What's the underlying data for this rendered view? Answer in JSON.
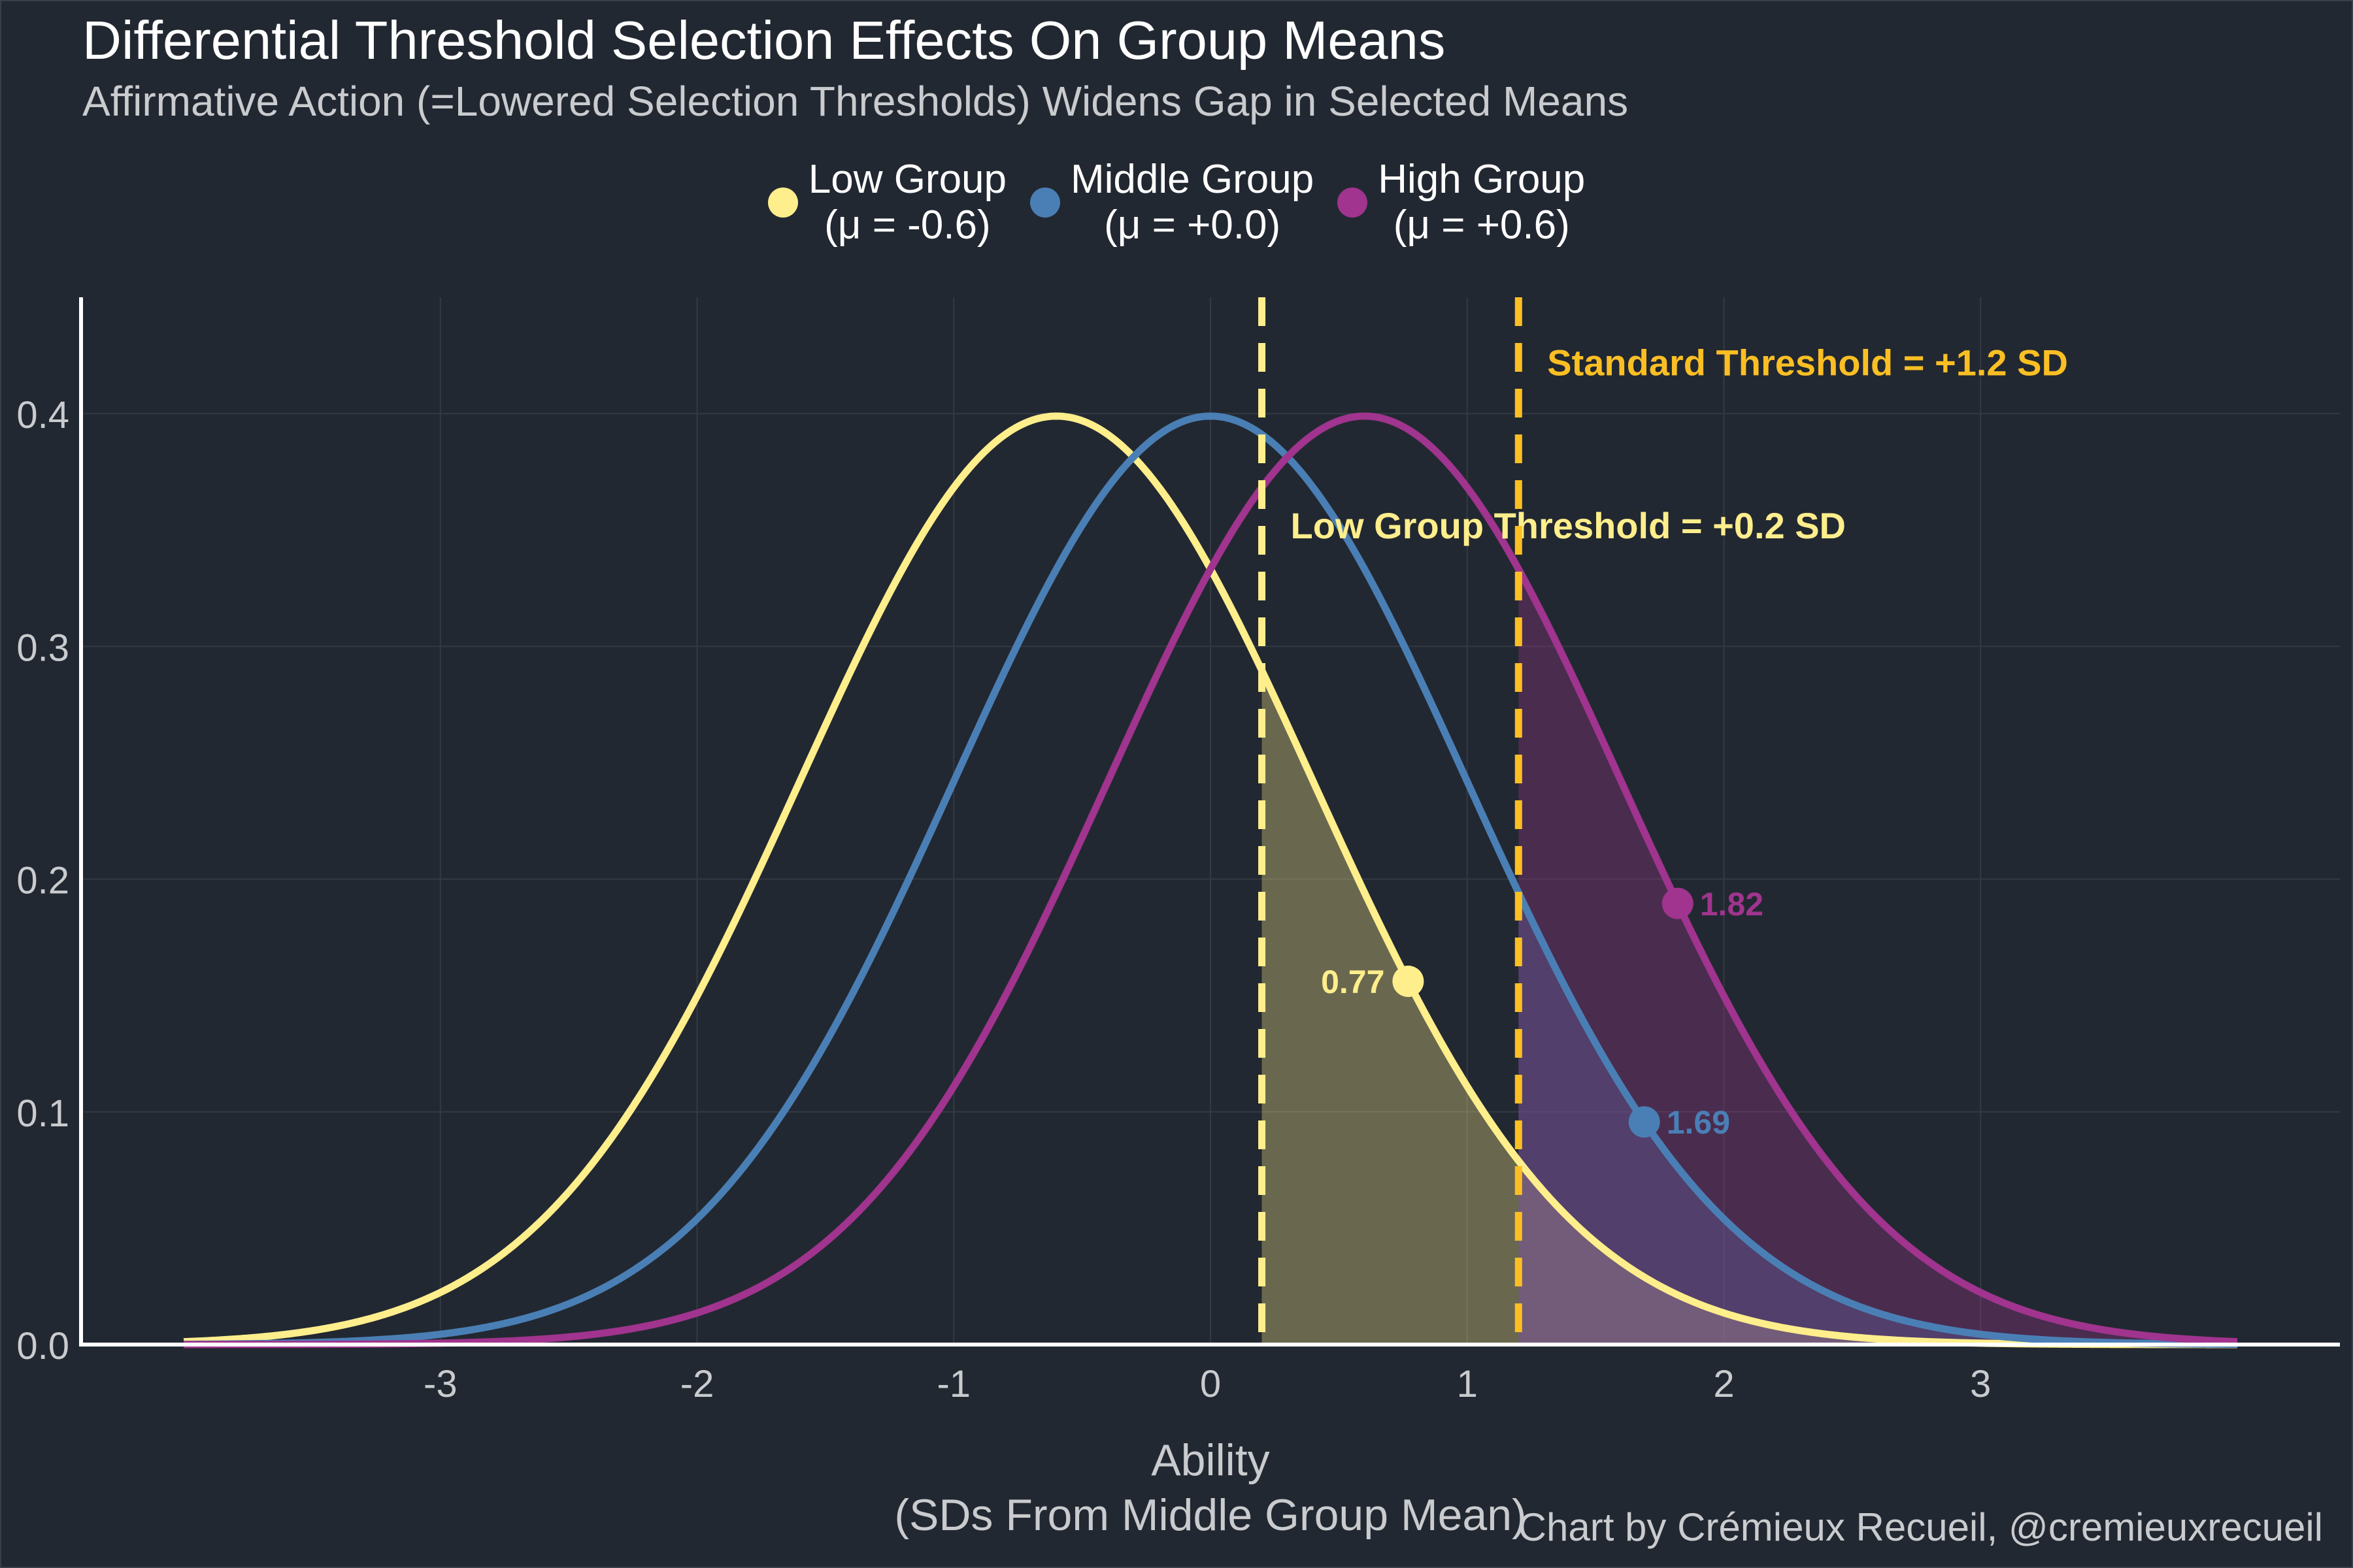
{
  "chart_data": {
    "type": "line",
    "title": "Differential Threshold Selection Effects On Group Means",
    "subtitle": "Affirmative Action (=Lowered Selection Thresholds) Widens Gap in Selected Means",
    "xlabel_line1": "Ability",
    "xlabel_line2": "(SDs From Middle Group Mean)",
    "ylabel": "",
    "xlim": [
      -4.4,
      4.4
    ],
    "ylim": [
      0,
      0.45
    ],
    "x_ticks": [
      -3,
      -2,
      -1,
      0,
      1,
      2,
      3
    ],
    "x_tick_labels": [
      "-3",
      "-2",
      "-1",
      "0",
      "1",
      "2",
      "3"
    ],
    "y_ticks": [
      0,
      0.1,
      0.2,
      0.3,
      0.4
    ],
    "y_tick_labels": [
      "0.0",
      "0.1",
      "0.2",
      "0.3",
      "0.4"
    ],
    "x_range": [
      -4,
      4
    ],
    "grid": true,
    "legend_position": "top",
    "series": [
      {
        "name": "Low Group",
        "name_line2": "(μ = -0.6)",
        "mean": -0.6,
        "sd": 1,
        "color": "#FFEE8C",
        "selected_mean": 0.77,
        "selected_mean_label": "0.77",
        "label_side": "left"
      },
      {
        "name": "Middle Group",
        "name_line2": "(μ = +0.0)",
        "mean": 0.0,
        "sd": 1,
        "color": "#4A7FB5",
        "selected_mean": 1.69,
        "selected_mean_label": "1.69",
        "label_side": "right"
      },
      {
        "name": "High Group",
        "name_line2": "(μ = +0.6)",
        "mean": 0.6,
        "sd": 1,
        "color": "#A0348E",
        "selected_mean": 1.82,
        "selected_mean_label": "1.82",
        "label_side": "right"
      }
    ],
    "thresholds": [
      {
        "value": 0.2,
        "label": "Low Group Threshold = +0.2 SD",
        "color": "#FFEE8C",
        "label_y": 0.352
      },
      {
        "value": 1.2,
        "label": "Standard Threshold = +1.2 SD",
        "color": "#FBBF24",
        "label_y": 0.422
      }
    ],
    "shaded_regions": [
      {
        "series": "Low Group",
        "from": 0.2,
        "color": "#FFEE8C",
        "opacity": 0.32
      },
      {
        "series": "Middle Group",
        "from": 1.2,
        "color": "#4A7FB5",
        "opacity": 0.32
      },
      {
        "series": "High Group",
        "from": 1.2,
        "color": "#A0348E",
        "opacity": 0.32
      }
    ]
  },
  "caption": "Chart by Crémieux Recueil, @cremieuxrecueil",
  "colors": {
    "background": "#222831",
    "grid": "#343a43",
    "axis": "#ffffff",
    "tick_text": "#c9cbce"
  }
}
